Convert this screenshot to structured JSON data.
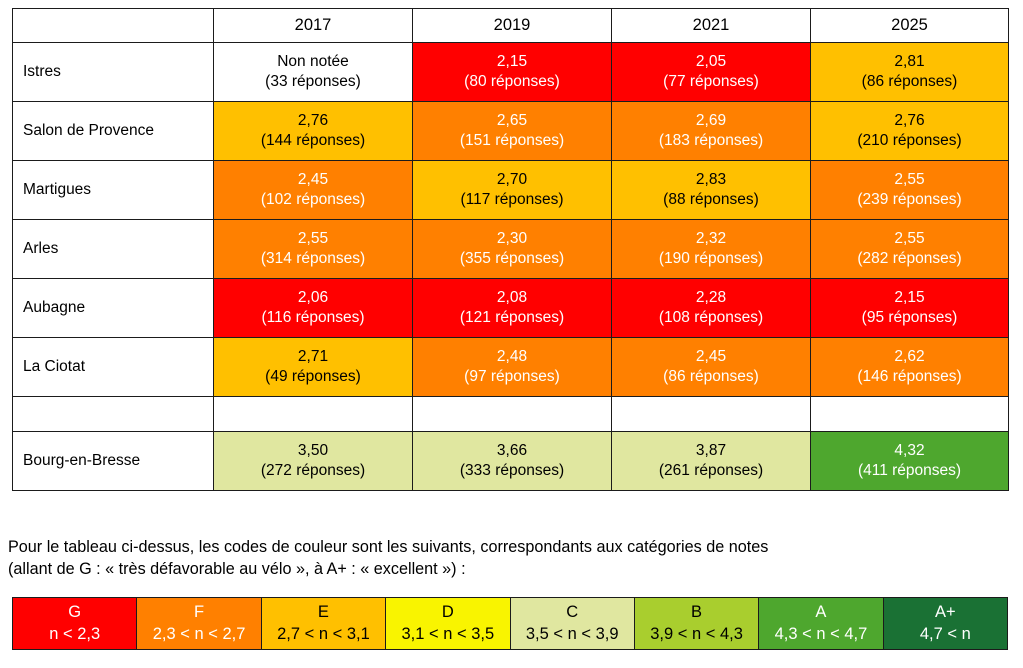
{
  "table": {
    "header": {
      "corner": "",
      "years": [
        "2017",
        "2019",
        "2021",
        "2025"
      ]
    },
    "rows": [
      {
        "city": "Istres",
        "cells": [
          {
            "value": "Non notée",
            "responses": "(33 réponses)",
            "grade": "none"
          },
          {
            "value": "2,15",
            "responses": "(80 réponses)",
            "grade": "G"
          },
          {
            "value": "2,05",
            "responses": "(77 réponses)",
            "grade": "G"
          },
          {
            "value": "2,81",
            "responses": "(86 réponses)",
            "grade": "E"
          }
        ]
      },
      {
        "city": "Salon de Provence",
        "cells": [
          {
            "value": "2,76",
            "responses": "(144 réponses)",
            "grade": "E"
          },
          {
            "value": "2,65",
            "responses": "(151 réponses)",
            "grade": "F"
          },
          {
            "value": "2,69",
            "responses": "(183 réponses)",
            "grade": "F"
          },
          {
            "value": "2,76",
            "responses": "(210 réponses)",
            "grade": "E"
          }
        ]
      },
      {
        "city": "Martigues",
        "cells": [
          {
            "value": "2,45",
            "responses": "(102 réponses)",
            "grade": "F"
          },
          {
            "value": "2,70",
            "responses": "(117 réponses)",
            "grade": "E"
          },
          {
            "value": "2,83",
            "responses": "(88 réponses)",
            "grade": "E"
          },
          {
            "value": "2,55",
            "responses": "(239 réponses)",
            "grade": "F"
          }
        ]
      },
      {
        "city": "Arles",
        "cells": [
          {
            "value": "2,55",
            "responses": "(314 réponses)",
            "grade": "F"
          },
          {
            "value": "2,30",
            "responses": "(355 réponses)",
            "grade": "F"
          },
          {
            "value": "2,32",
            "responses": "(190 réponses)",
            "grade": "F"
          },
          {
            "value": "2,55",
            "responses": "(282 réponses)",
            "grade": "F"
          }
        ]
      },
      {
        "city": "Aubagne",
        "cells": [
          {
            "value": "2,06",
            "responses": "(116 réponses)",
            "grade": "G"
          },
          {
            "value": "2,08",
            "responses": "(121 réponses)",
            "grade": "G"
          },
          {
            "value": "2,28",
            "responses": "(108 réponses)",
            "grade": "G"
          },
          {
            "value": "2,15",
            "responses": "(95 réponses)",
            "grade": "G"
          }
        ]
      },
      {
        "city": "La Ciotat",
        "cells": [
          {
            "value": "2,71",
            "responses": "(49 réponses)",
            "grade": "E"
          },
          {
            "value": "2,48",
            "responses": "(97 réponses)",
            "grade": "F"
          },
          {
            "value": "2,45",
            "responses": "(86 réponses)",
            "grade": "F"
          },
          {
            "value": "2,62",
            "responses": "(146 réponses)",
            "grade": "F"
          }
        ]
      },
      {
        "city": "",
        "spacer": true,
        "cells": [
          {
            "value": "",
            "responses": "",
            "grade": "none"
          },
          {
            "value": "",
            "responses": "",
            "grade": "none"
          },
          {
            "value": "",
            "responses": "",
            "grade": "none"
          },
          {
            "value": "",
            "responses": "",
            "grade": "none"
          }
        ]
      },
      {
        "city": "Bourg-en-Bresse",
        "cells": [
          {
            "value": "3,50",
            "responses": "(272 réponses)",
            "grade": "C"
          },
          {
            "value": "3,66",
            "responses": "(333 réponses)",
            "grade": "C"
          },
          {
            "value": "3,87",
            "responses": "(261 réponses)",
            "grade": "C"
          },
          {
            "value": "4,32",
            "responses": "(411 réponses)",
            "grade": "A"
          }
        ]
      }
    ]
  },
  "note": {
    "line1": "Pour le tableau ci-dessus, les codes de couleur sont les suivants, correspondants aux catégories de notes",
    "line2": "(allant de G : « très défavorable au vélo », à A+ : « excellent ») :"
  },
  "legend": {
    "items": [
      {
        "grade": "G",
        "range": "n < 2,3"
      },
      {
        "grade": "F",
        "range": "2,3 < n < 2,7"
      },
      {
        "grade": "E",
        "range": "2,7 < n < 3,1"
      },
      {
        "grade": "D",
        "range": "3,1 < n < 3,5"
      },
      {
        "grade": "C",
        "range": "3,5 < n < 3,9"
      },
      {
        "grade": "B",
        "range": "3,9 < n < 4,3"
      },
      {
        "grade": "A",
        "range": "4,3 < n < 4,7"
      },
      {
        "grade": "A+",
        "range": "4,7 < n"
      }
    ]
  },
  "palette": {
    "G": {
      "bg": "#FF0000",
      "fg": "#FFFFFF"
    },
    "F": {
      "bg": "#FF8000",
      "fg": "#FFFFFF"
    },
    "E": {
      "bg": "#FFC000",
      "fg": "#000000"
    },
    "D": {
      "bg": "#F9F400",
      "fg": "#000000"
    },
    "C": {
      "bg": "#E0E7A0",
      "fg": "#000000"
    },
    "B": {
      "bg": "#A9CE2E",
      "fg": "#000000"
    },
    "A": {
      "bg": "#4EA72E",
      "fg": "#FFFFFF"
    },
    "A+": {
      "bg": "#1A7134",
      "fg": "#FFFFFF"
    },
    "none": {
      "bg": "#FFFFFF",
      "fg": "#000000"
    }
  }
}
